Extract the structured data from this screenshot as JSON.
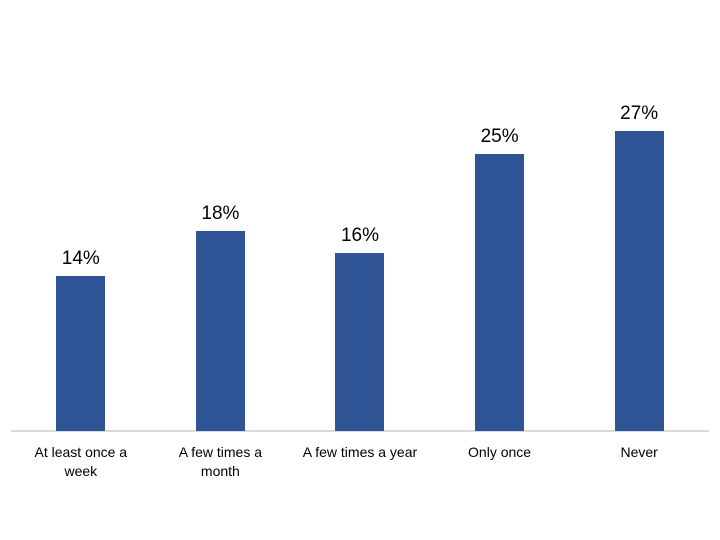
{
  "chart_data": {
    "type": "bar",
    "title": "",
    "categories": [
      "At least once a\nweek",
      "A few times a\nmonth",
      "A few times a year",
      "Only once",
      "Never"
    ],
    "values": [
      14,
      18,
      16,
      25,
      27
    ],
    "value_labels": [
      "14%",
      "18%",
      "16%",
      "25%",
      "27%"
    ],
    "xlabel": "",
    "ylabel": "",
    "ylim": [
      0,
      30
    ],
    "grid": "off",
    "legend": "none",
    "data_labels_position": "outside-end",
    "bar_color": "#2F5496",
    "axis_line_color": "#D9D9D9",
    "label_text_color": "#000000",
    "background_color": "#FFFFFF"
  }
}
